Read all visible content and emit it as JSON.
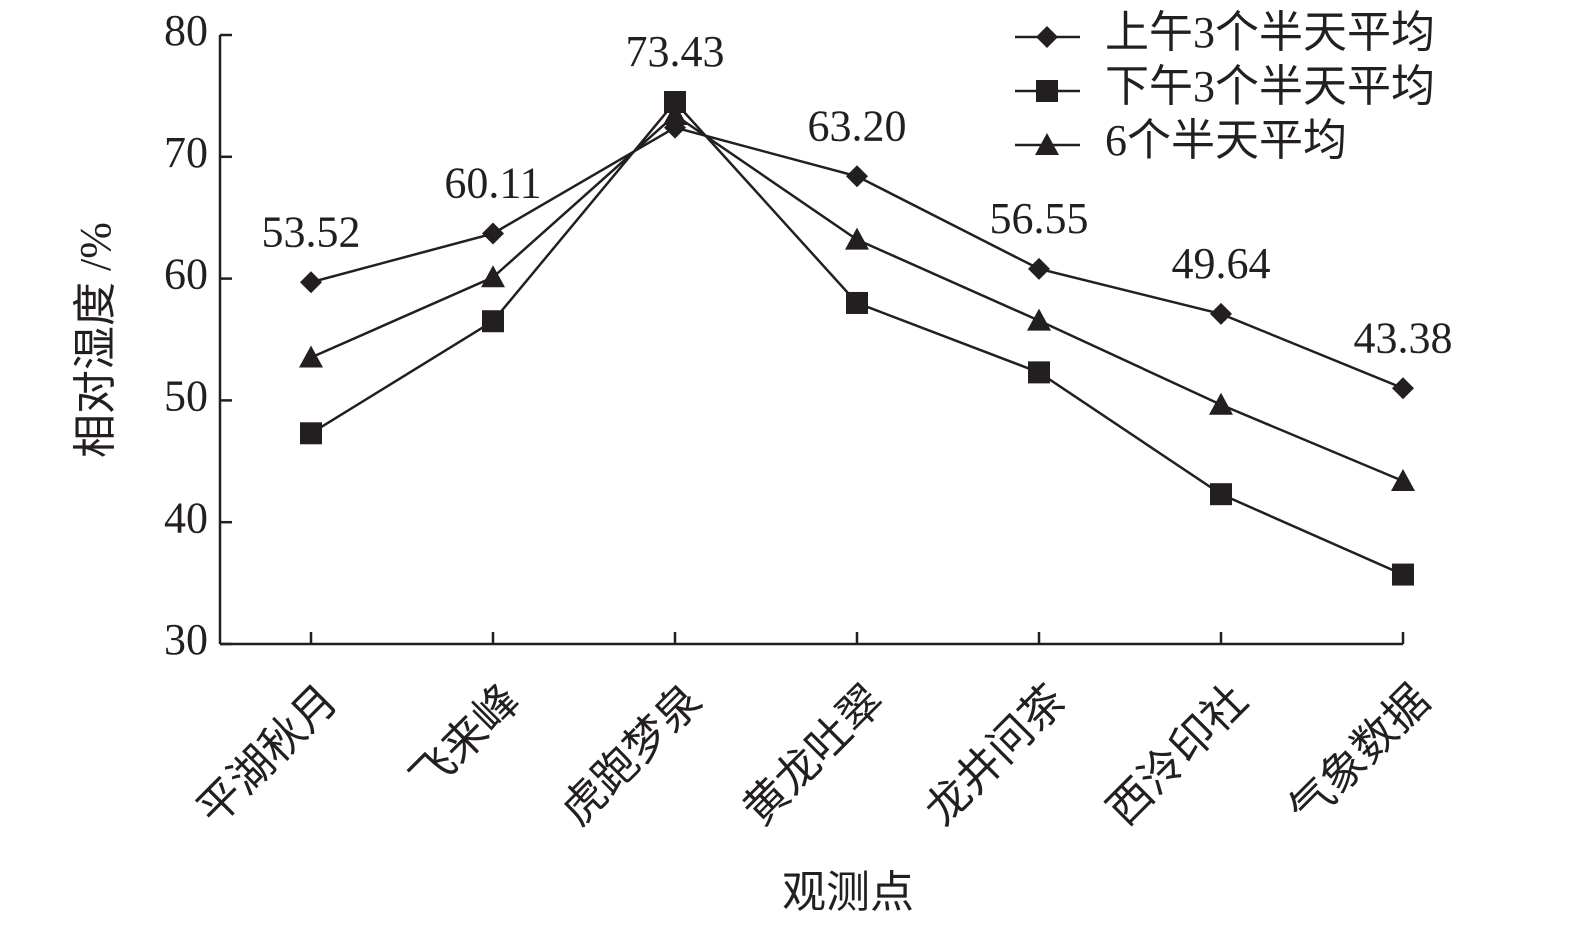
{
  "chart_data": {
    "type": "line",
    "x_label": "观测点",
    "y_label": "相对湿度 /%",
    "categories": [
      "平湖秋月",
      "飞来峰",
      "虎跑梦泉",
      "黄龙吐翠",
      "龙井问茶",
      "西泠印社",
      "气象数据"
    ],
    "series": [
      {
        "name": "上午3个半天平均",
        "color": "#231f20",
        "marker": "diamond",
        "values": [
          59.7,
          63.7,
          72.4,
          68.4,
          60.8,
          57.1,
          51.0
        ]
      },
      {
        "name": "下午3个半天平均",
        "color": "#231f20",
        "marker": "square",
        "values": [
          47.3,
          56.5,
          74.5,
          58.0,
          52.3,
          42.3,
          35.7
        ]
      },
      {
        "name": "6个半天平均",
        "color": "#231f20",
        "marker": "triangle",
        "values": [
          53.52,
          60.11,
          73.43,
          63.2,
          56.55,
          49.64,
          43.38
        ],
        "value_labels": [
          "53.52",
          "60.11",
          "73.43",
          "63.20",
          "56.55",
          "49.64",
          "43.38"
        ]
      }
    ],
    "ylim": [
      30,
      80
    ],
    "yticks": [
      30,
      40,
      50,
      60,
      70,
      80
    ],
    "legend": "upper right"
  }
}
